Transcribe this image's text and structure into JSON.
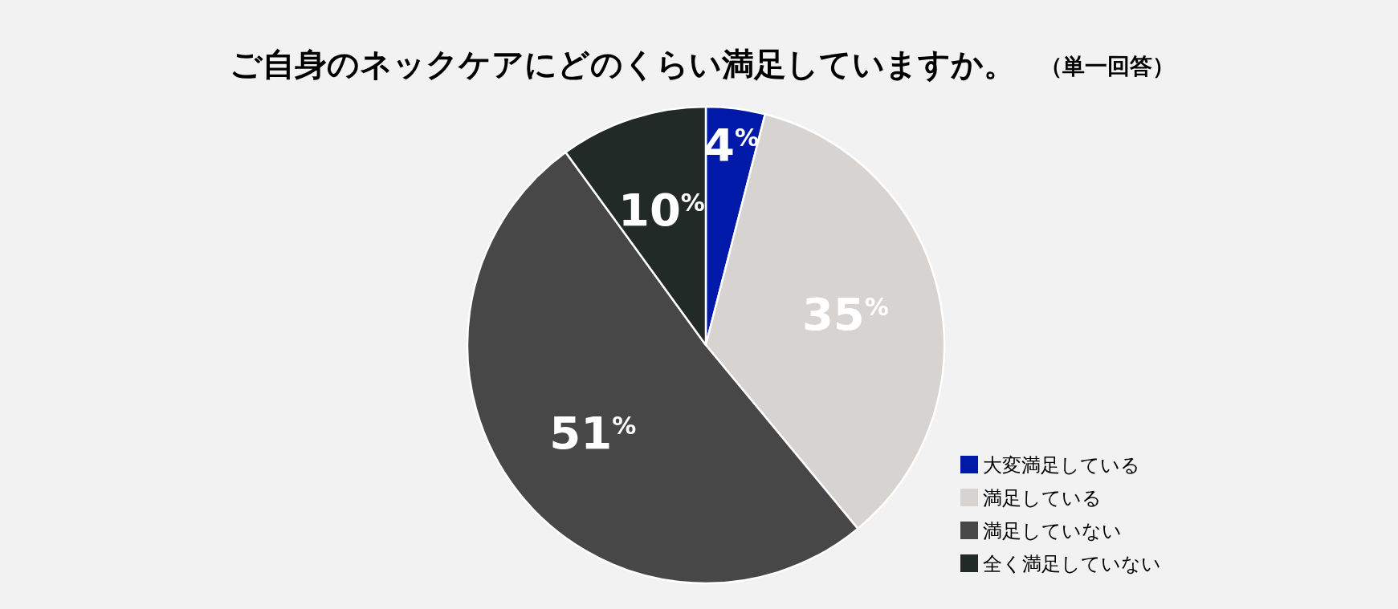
{
  "chart_data": {
    "type": "pie",
    "title": "ご自身のネックケアにどのくらい満足していますか。",
    "subtitle": "（単一回答）",
    "categories": [
      "大変満足している",
      "満足している",
      "満足していない",
      "全く満足していない"
    ],
    "values": [
      4,
      35,
      51,
      10
    ],
    "colors": [
      "#0019a8",
      "#d6d3d0",
      "#474747",
      "#212a26"
    ],
    "value_labels": [
      "4$^{%}$",
      "35$^{%}$",
      "51$^{%}$",
      "10$^{%}$"
    ],
    "legend": "bottom right"
  }
}
